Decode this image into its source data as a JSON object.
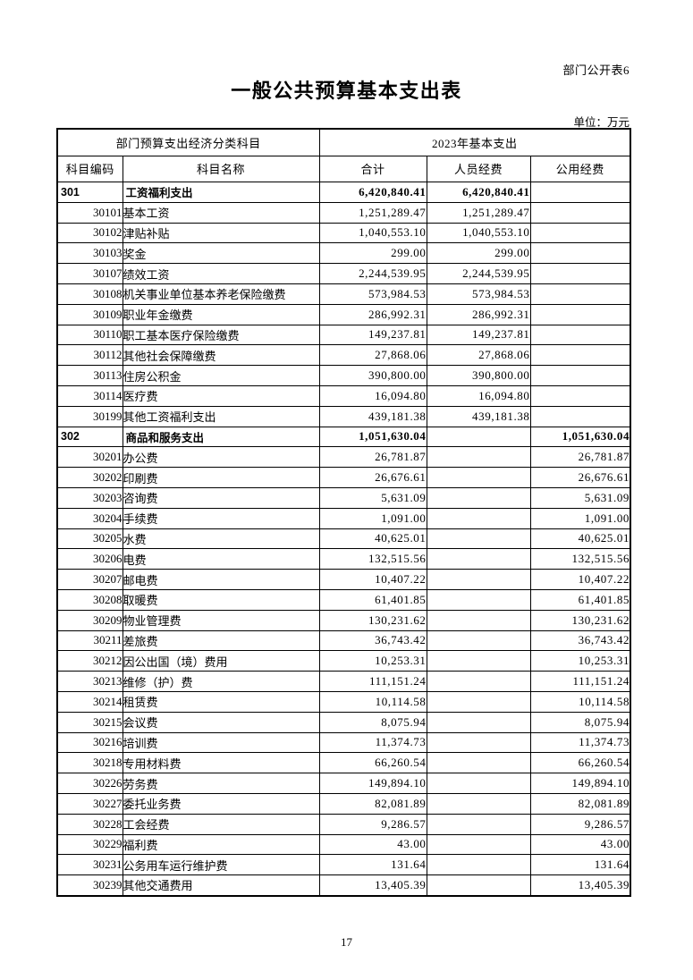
{
  "page": {
    "doc_label": "部门公开表6",
    "title": "一般公共预算基本支出表",
    "unit_note": "单位：万元",
    "page_number": "17"
  },
  "table": {
    "header": {
      "group_left": "部门预算支出经济分类科目",
      "group_right": "2023年基本支出",
      "columns": [
        "科目编码",
        "科目名称",
        "合计",
        "人员经费",
        "公用经费"
      ]
    },
    "rows": [
      {
        "section": true,
        "code": "301",
        "name": "工资福利支出",
        "total": "6,420,840.41",
        "personnel": "6,420,840.41",
        "public": ""
      },
      {
        "section": false,
        "code": "30101",
        "name": "基本工资",
        "total": "1,251,289.47",
        "personnel": "1,251,289.47",
        "public": ""
      },
      {
        "section": false,
        "code": "30102",
        "name": "津贴补贴",
        "total": "1,040,553.10",
        "personnel": "1,040,553.10",
        "public": ""
      },
      {
        "section": false,
        "code": "30103",
        "name": "奖金",
        "total": "299.00",
        "personnel": "299.00",
        "public": ""
      },
      {
        "section": false,
        "code": "30107",
        "name": "绩效工资",
        "total": "2,244,539.95",
        "personnel": "2,244,539.95",
        "public": ""
      },
      {
        "section": false,
        "code": "30108",
        "name": "机关事业单位基本养老保险缴费",
        "total": "573,984.53",
        "personnel": "573,984.53",
        "public": ""
      },
      {
        "section": false,
        "code": "30109",
        "name": "职业年金缴费",
        "total": "286,992.31",
        "personnel": "286,992.31",
        "public": ""
      },
      {
        "section": false,
        "code": "30110",
        "name": "职工基本医疗保险缴费",
        "total": "149,237.81",
        "personnel": "149,237.81",
        "public": ""
      },
      {
        "section": false,
        "code": "30112",
        "name": "其他社会保障缴费",
        "total": "27,868.06",
        "personnel": "27,868.06",
        "public": ""
      },
      {
        "section": false,
        "code": "30113",
        "name": "住房公积金",
        "total": "390,800.00",
        "personnel": "390,800.00",
        "public": ""
      },
      {
        "section": false,
        "code": "30114",
        "name": "医疗费",
        "total": "16,094.80",
        "personnel": "16,094.80",
        "public": ""
      },
      {
        "section": false,
        "code": "30199",
        "name": "其他工资福利支出",
        "total": "439,181.38",
        "personnel": "439,181.38",
        "public": ""
      },
      {
        "section": true,
        "code": "302",
        "name": "商品和服务支出",
        "total": "1,051,630.04",
        "personnel": "",
        "public": "1,051,630.04"
      },
      {
        "section": false,
        "code": "30201",
        "name": "办公费",
        "total": "26,781.87",
        "personnel": "",
        "public": "26,781.87"
      },
      {
        "section": false,
        "code": "30202",
        "name": "印刷费",
        "total": "26,676.61",
        "personnel": "",
        "public": "26,676.61"
      },
      {
        "section": false,
        "code": "30203",
        "name": "咨询费",
        "total": "5,631.09",
        "personnel": "",
        "public": "5,631.09"
      },
      {
        "section": false,
        "code": "30204",
        "name": "手续费",
        "total": "1,091.00",
        "personnel": "",
        "public": "1,091.00"
      },
      {
        "section": false,
        "code": "30205",
        "name": "水费",
        "total": "40,625.01",
        "personnel": "",
        "public": "40,625.01"
      },
      {
        "section": false,
        "code": "30206",
        "name": "电费",
        "total": "132,515.56",
        "personnel": "",
        "public": "132,515.56"
      },
      {
        "section": false,
        "code": "30207",
        "name": "邮电费",
        "total": "10,407.22",
        "personnel": "",
        "public": "10,407.22"
      },
      {
        "section": false,
        "code": "30208",
        "name": "取暖费",
        "total": "61,401.85",
        "personnel": "",
        "public": "61,401.85"
      },
      {
        "section": false,
        "code": "30209",
        "name": "物业管理费",
        "total": "130,231.62",
        "personnel": "",
        "public": "130,231.62"
      },
      {
        "section": false,
        "code": "30211",
        "name": "差旅费",
        "total": "36,743.42",
        "personnel": "",
        "public": "36,743.42"
      },
      {
        "section": false,
        "code": "30212",
        "name": "因公出国（境）费用",
        "total": "10,253.31",
        "personnel": "",
        "public": "10,253.31"
      },
      {
        "section": false,
        "code": "30213",
        "name": "维修（护）费",
        "total": "111,151.24",
        "personnel": "",
        "public": "111,151.24"
      },
      {
        "section": false,
        "code": "30214",
        "name": "租赁费",
        "total": "10,114.58",
        "personnel": "",
        "public": "10,114.58"
      },
      {
        "section": false,
        "code": "30215",
        "name": "会议费",
        "total": "8,075.94",
        "personnel": "",
        "public": "8,075.94"
      },
      {
        "section": false,
        "code": "30216",
        "name": "培训费",
        "total": "11,374.73",
        "personnel": "",
        "public": "11,374.73"
      },
      {
        "section": false,
        "code": "30218",
        "name": "专用材料费",
        "total": "66,260.54",
        "personnel": "",
        "public": "66,260.54"
      },
      {
        "section": false,
        "code": "30226",
        "name": "劳务费",
        "total": "149,894.10",
        "personnel": "",
        "public": "149,894.10"
      },
      {
        "section": false,
        "code": "30227",
        "name": "委托业务费",
        "total": "82,081.89",
        "personnel": "",
        "public": "82,081.89"
      },
      {
        "section": false,
        "code": "30228",
        "name": "工会经费",
        "total": "9,286.57",
        "personnel": "",
        "public": "9,286.57"
      },
      {
        "section": false,
        "code": "30229",
        "name": "福利费",
        "total": "43.00",
        "personnel": "",
        "public": "43.00"
      },
      {
        "section": false,
        "code": "30231",
        "name": "公务用车运行维护费",
        "total": "131.64",
        "personnel": "",
        "public": "131.64"
      },
      {
        "section": false,
        "code": "30239",
        "name": "其他交通费用",
        "total": "13,405.39",
        "personnel": "",
        "public": "13,405.39"
      }
    ]
  }
}
